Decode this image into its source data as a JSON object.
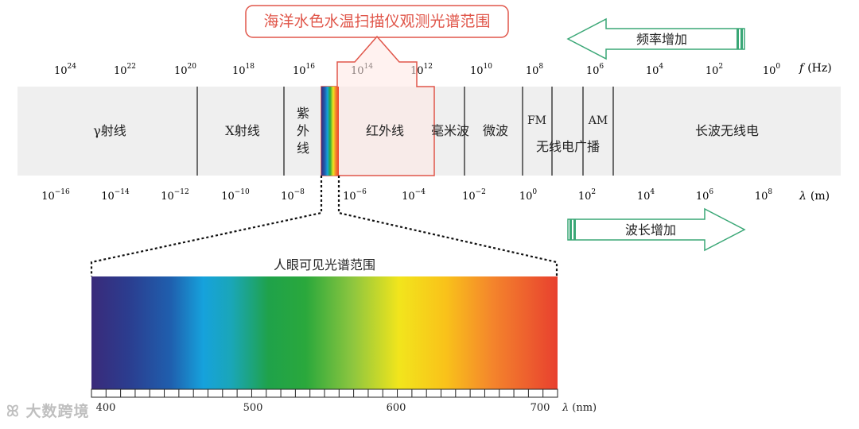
{
  "title": "海洋水色水温扫描仪观测光谱范围",
  "arrow_up": "频率增加",
  "arrow_down": "波长增加",
  "top_axis": {
    "label": "f",
    "unit": "(Hz)",
    "ticks": [
      {
        "base": "10",
        "exp": "24"
      },
      {
        "base": "10",
        "exp": "22"
      },
      {
        "base": "10",
        "exp": "20"
      },
      {
        "base": "10",
        "exp": "18"
      },
      {
        "base": "10",
        "exp": "16"
      },
      {
        "base": "10",
        "exp": "14"
      },
      {
        "base": "10",
        "exp": "12"
      },
      {
        "base": "10",
        "exp": "10"
      },
      {
        "base": "10",
        "exp": "8"
      },
      {
        "base": "10",
        "exp": "6"
      },
      {
        "base": "10",
        "exp": "4"
      },
      {
        "base": "10",
        "exp": "2"
      },
      {
        "base": "10",
        "exp": "0"
      }
    ]
  },
  "bottom_axis": {
    "label": "λ",
    "unit": "(m)",
    "ticks": [
      {
        "base": "10",
        "exp": "−16"
      },
      {
        "base": "10",
        "exp": "−14"
      },
      {
        "base": "10",
        "exp": "−12"
      },
      {
        "base": "10",
        "exp": "−10"
      },
      {
        "base": "10",
        "exp": "−8"
      },
      {
        "base": "10",
        "exp": "−6"
      },
      {
        "base": "10",
        "exp": "−4"
      },
      {
        "base": "10",
        "exp": "−2"
      },
      {
        "base": "10",
        "exp": "0"
      },
      {
        "base": "10",
        "exp": "2"
      },
      {
        "base": "10",
        "exp": "4"
      },
      {
        "base": "10",
        "exp": "6"
      },
      {
        "base": "10",
        "exp": "8"
      }
    ]
  },
  "bands": {
    "gamma": "γ射线",
    "xray": "X射线",
    "uv": [
      "紫",
      "外",
      "线"
    ],
    "infrared": "红外线",
    "mm": "毫米波",
    "microwave": "微波",
    "fm": "FM",
    "am": "AM",
    "radio": "无线电广播",
    "longwave": "长波无线电"
  },
  "visible": {
    "title": "人眼可见光谱范围",
    "ticks": [
      "400",
      "500",
      "600",
      "700"
    ],
    "axis_label": "λ",
    "axis_unit": "(nm)"
  },
  "watermark": "大数跨境",
  "colors": {
    "accent_red": "#e0564a",
    "accent_green": "#3aa776",
    "band_bg": "#efefef"
  }
}
